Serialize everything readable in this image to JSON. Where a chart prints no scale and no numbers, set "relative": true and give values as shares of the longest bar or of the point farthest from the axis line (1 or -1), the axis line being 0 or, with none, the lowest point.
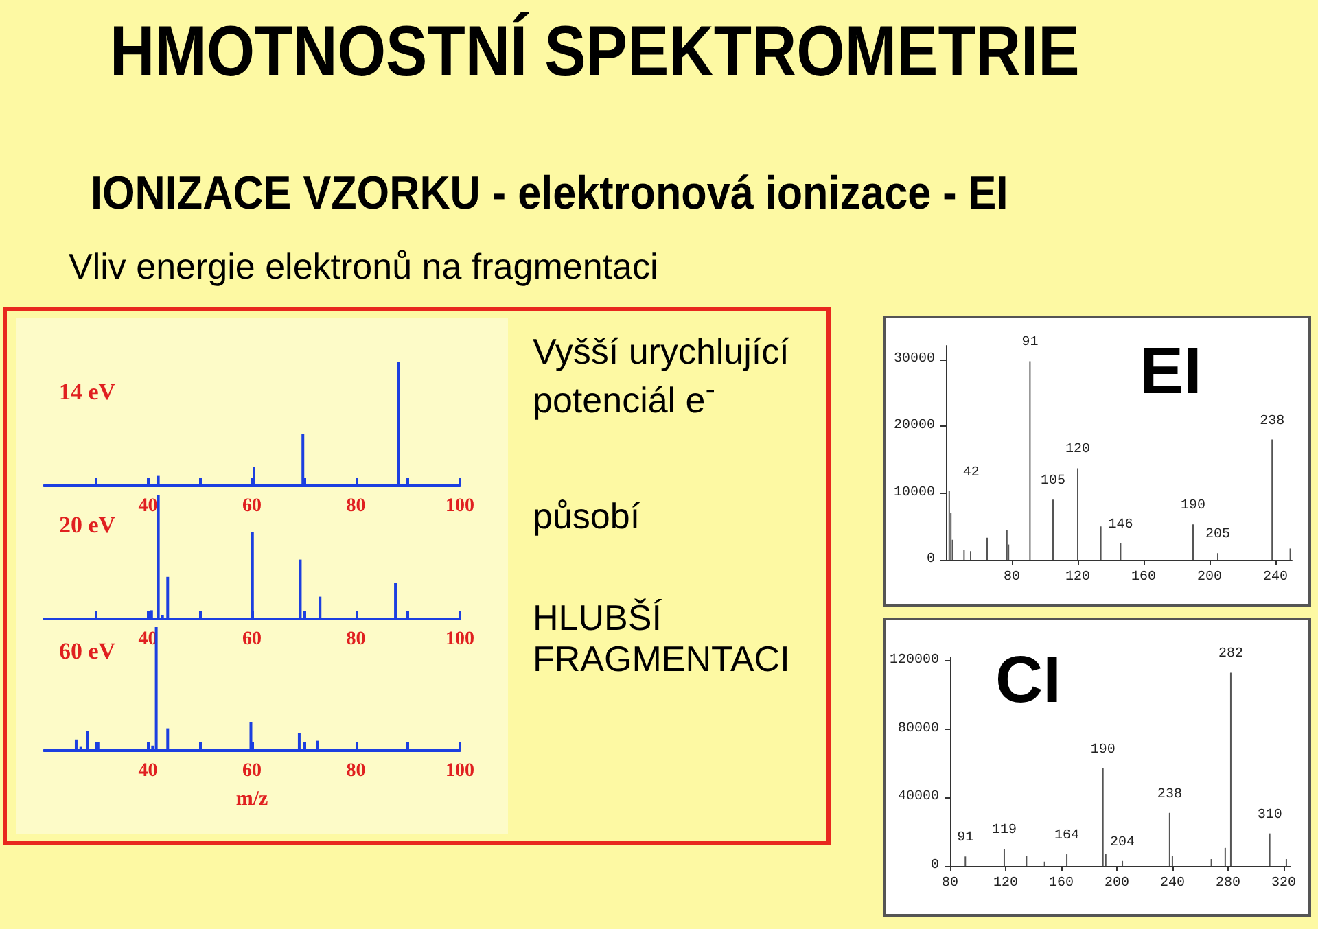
{
  "chart_data": [
    {
      "type": "other",
      "title": "HMOTNOSTNÍ SPEKTROMETRIE",
      "subtitle": "IONIZACE VZORKU - elektronová ionizace - EI",
      "annotations": [
        "Vliv energie elektronů na fragmentaci",
        "Vyšší urychlující potenciál e$^{-}$",
        "působí",
        "HLUBŠÍ FRAGMENTACI"
      ]
    },
    {
      "type": "bar",
      "title": "14 eV",
      "relative": true,
      "color": "#1c3fe0",
      "x": [
        42,
        60.4,
        69.8,
        88.2
      ],
      "values": [
        0.08,
        0.15,
        0.42,
        1
      ],
      "xlim": [
        20,
        100
      ],
      "xticks": [
        {
          "value": 30,
          "label": null
        },
        40,
        {
          "value": 50,
          "label": null
        },
        60,
        {
          "value": 70,
          "label": null
        },
        80,
        {
          "value": 90,
          "label": null
        },
        100
      ],
      "tick_labels": "x"
    },
    {
      "type": "bar",
      "title": "20 eV",
      "relative": true,
      "color": "#1c3fe0",
      "x": [
        40.7,
        42,
        42.8,
        43.8,
        60.1,
        69.3,
        73.1,
        87.6
      ],
      "values": [
        0.07,
        1,
        0.03,
        0.34,
        0.7,
        0.48,
        0.18,
        0.29
      ],
      "xlim": [
        20,
        100
      ],
      "xticks": [
        {
          "value": 30,
          "label": null
        },
        40,
        {
          "value": 50,
          "label": null
        },
        60,
        {
          "value": 70,
          "label": null
        },
        80,
        {
          "value": 90,
          "label": null
        },
        100
      ],
      "tick_labels": "x"
    },
    {
      "type": "bar",
      "title": "60 eV",
      "xlabel": "m/z",
      "relative": true,
      "color": "#1c3fe0",
      "x": [
        26.2,
        27.1,
        28.4,
        30.4,
        40.9,
        41.6,
        43.8,
        59.8,
        69.1,
        72.6
      ],
      "values": [
        0.09,
        0.03,
        0.16,
        0.07,
        0.04,
        1,
        0.18,
        0.23,
        0.14,
        0.08
      ],
      "xlim": [
        20,
        100
      ],
      "xticks": [
        {
          "value": 30,
          "label": null
        },
        40,
        {
          "value": 50,
          "label": null
        },
        60,
        {
          "value": 70,
          "label": null
        },
        80,
        {
          "value": 90,
          "label": null
        },
        100
      ],
      "tick_labels": "x"
    },
    {
      "type": "bar",
      "title": "EI",
      "color": "#555555",
      "x": [
        42,
        43,
        44,
        51,
        55,
        65,
        77,
        78,
        91,
        105,
        120,
        134,
        146,
        190,
        205,
        238,
        249
      ],
      "values": [
        10300,
        7000,
        3000,
        1500,
        1300,
        3300,
        4500,
        2300,
        29700,
        9000,
        13700,
        5000,
        2500,
        5300,
        1000,
        18000,
        1700
      ],
      "xlim": [
        40,
        250
      ],
      "xticks": [
        80,
        120,
        160,
        200,
        240
      ],
      "ylim": [
        0,
        32000
      ],
      "yticks": [
        0,
        10000,
        20000,
        30000
      ],
      "annotations": [
        {
          "text": "42",
          "x": 42,
          "y": 10300
        },
        {
          "text": "91",
          "x": 91,
          "y": 29700
        },
        {
          "text": "105",
          "x": 105,
          "y": 9000
        },
        {
          "text": "120",
          "x": 120,
          "y": 13700
        },
        {
          "text": "146",
          "x": 146,
          "y": 2500
        },
        {
          "text": "190",
          "x": 190,
          "y": 5300
        },
        {
          "text": "205",
          "x": 205,
          "y": 1000
        },
        {
          "text": "238",
          "x": 238,
          "y": 18000
        }
      ]
    },
    {
      "type": "bar",
      "title": "CI",
      "color": "#555555",
      "x": [
        91,
        119,
        135,
        148,
        164,
        190,
        192,
        204,
        238,
        240,
        268,
        278,
        282,
        310,
        322
      ],
      "values": [
        5500,
        10000,
        6000,
        2500,
        6800,
        57000,
        7000,
        2900,
        31000,
        6000,
        4000,
        10500,
        113000,
        19000,
        4000
      ],
      "xlim": [
        80,
        325
      ],
      "xticks": [
        80,
        120,
        160,
        200,
        240,
        280,
        320
      ],
      "ylim": [
        0,
        122000
      ],
      "yticks": [
        0,
        40000,
        80000,
        120000
      ],
      "annotations": [
        {
          "text": "91",
          "x": 91,
          "y": 5500
        },
        {
          "text": "119",
          "x": 119,
          "y": 10000
        },
        {
          "text": "164",
          "x": 164,
          "y": 6800
        },
        {
          "text": "190",
          "x": 190,
          "y": 57000
        },
        {
          "text": "204",
          "x": 204,
          "y": 2900
        },
        {
          "text": "238",
          "x": 238,
          "y": 31000
        },
        {
          "text": "282",
          "x": 282,
          "y": 113000
        },
        {
          "text": "310",
          "x": 310,
          "y": 19000
        }
      ]
    }
  ]
}
